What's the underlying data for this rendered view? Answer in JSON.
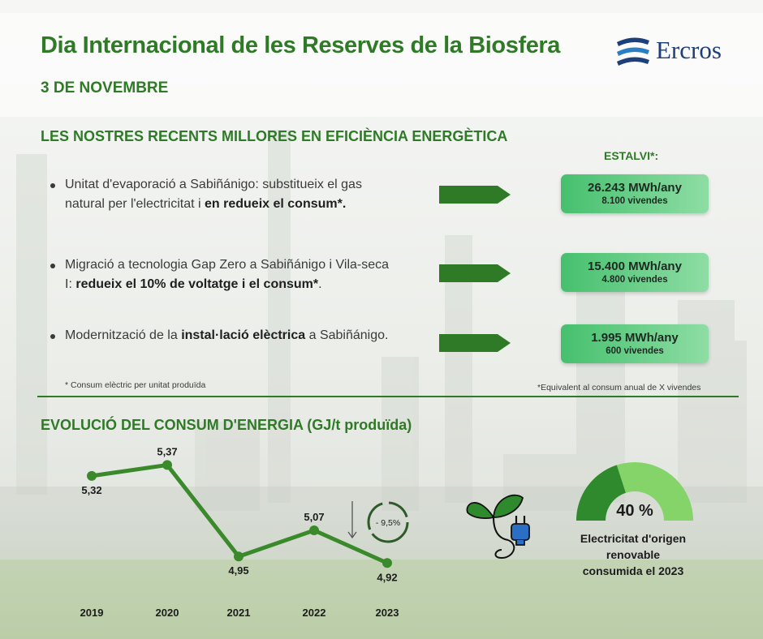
{
  "header": {
    "title": "Dia Internacional de les Reserves de la Biosfera",
    "date": "3 DE NOVEMBRE",
    "logo_text": "Ercros"
  },
  "efficiency": {
    "heading": "LES NOSTRES RECENTS MILLORES EN EFICIÈNCIA ENERGÈTICA",
    "savings_label": "ESTALVI*:",
    "items": [
      {
        "text_plain": "Unitat d'evaporació a Sabiñánigo: substitueix el gas natural per l'electricitat i ",
        "text_bold": "en redueix el consum*.",
        "text_after": "",
        "saving": "26.243 MWh/any",
        "homes": "8.100 vivendes"
      },
      {
        "text_plain": "Migració a tecnologia Gap Zero a Sabiñánigo i Vila-seca I: ",
        "text_bold": "redueix el 10% de voltatge i el consum*",
        "text_after": ".",
        "saving": "15.400 MWh/any",
        "homes": "4.800 vivendes"
      },
      {
        "text_plain": "Modernització de la ",
        "text_bold": "instal·lació elèctrica",
        "text_after": " a Sabiñánigo.",
        "saving": "1.995 MWh/any",
        "homes": "600 vivendes"
      }
    ],
    "note_left": "* Consum elèctric per unitat produïda",
    "note_right": "*Equivalent al consum anual de X vivendes"
  },
  "energy": {
    "heading": "EVOLUCIÓ DEL CONSUM D'ENERGIA (GJ/t produïda)",
    "reduction_badge": "- 9,5%",
    "renewable_pct": 40,
    "renewable_label": "40 %",
    "renewable_text_1": "Electricitat d'origen",
    "renewable_text_2": "renovable",
    "renewable_text_3": "consumida el 2023"
  },
  "colors": {
    "brand_green": "#2f7a27",
    "box_green": "#46c06e",
    "gauge_dark": "#2e8a2c",
    "gauge_light": "#84d46a",
    "logo_blue": "#1d3f7a"
  },
  "chart_data": {
    "type": "line",
    "title": "EVOLUCIÓ DEL CONSUM D'ENERGIA (GJ/t produïda)",
    "categories": [
      "2019",
      "2020",
      "2021",
      "2022",
      "2023"
    ],
    "values": [
      5.32,
      5.37,
      4.95,
      5.07,
      4.92
    ],
    "value_labels": [
      "5,32",
      "5,37",
      "4,95",
      "5,07",
      "4,92"
    ],
    "ylim": [
      4.88,
      5.42
    ],
    "grid": false,
    "color": "#3a8a2c"
  }
}
